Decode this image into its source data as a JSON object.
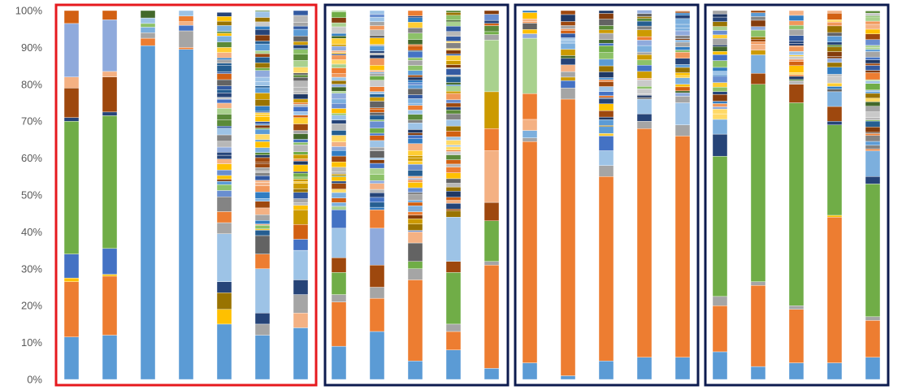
{
  "chart_data": {
    "type": "bar",
    "stacked": true,
    "percent_stacked": true,
    "ylim": [
      0,
      100
    ],
    "y_ticks": [
      "0%",
      "10%",
      "20%",
      "30%",
      "40%",
      "50%",
      "60%",
      "70%",
      "80%",
      "90%",
      "100%"
    ],
    "title": "",
    "xlabel": "",
    "ylabel": "",
    "legend": "none",
    "grid": false,
    "bar_width_ratio": 0.38,
    "groups": [
      {
        "name": "",
        "frame_color": "#e6191e",
        "bars": [
          0,
          1,
          2,
          3,
          4,
          5,
          6
        ]
      },
      {
        "name": "",
        "frame_color": "#0d1b4f",
        "bars": [
          7,
          8,
          9,
          10,
          11
        ]
      },
      {
        "name": "",
        "frame_color": "#0d1b4f",
        "bars": [
          12,
          13,
          14,
          15,
          16
        ]
      },
      {
        "name": "",
        "frame_color": "#0d1b4f",
        "bars": [
          17,
          18,
          19,
          20,
          21
        ]
      }
    ],
    "palette": [
      "#5b9bd5",
      "#ed7d31",
      "#a5a5a5",
      "#ffc000",
      "#4472c4",
      "#70ad47",
      "#264478",
      "#9e480e",
      "#636363",
      "#997300",
      "#255e91",
      "#43682b",
      "#7cafdd",
      "#f1975a",
      "#b7b7b7",
      "#ffcd33",
      "#698ed0",
      "#8cc168",
      "#335aa1",
      "#d26012",
      "#848484",
      "#cc9a00",
      "#327dc2",
      "#5a8a39",
      "#9dc3e6",
      "#f4b183",
      "#c9c9c9",
      "#ffd966",
      "#8faadc",
      "#a9d18e",
      "#1f3864",
      "#843c0c"
    ],
    "series_note": "",
    "bars": [
      {
        "segments": [
          {
            "v": 11.5,
            "c": "#5b9bd5"
          },
          {
            "v": 15,
            "c": "#ed7d31"
          },
          {
            "v": 1,
            "c": "#ffc000"
          },
          {
            "v": 6.5,
            "c": "#4472c4"
          },
          {
            "v": 36,
            "c": "#70ad47"
          },
          {
            "v": 1,
            "c": "#264478"
          },
          {
            "v": 8,
            "c": "#9e480e"
          },
          {
            "v": 3,
            "c": "#f4b183"
          },
          {
            "v": 14.5,
            "c": "#8faadc"
          },
          {
            "v": 3.5,
            "c": "#d26012"
          }
        ]
      },
      {
        "segments": [
          {
            "v": 12,
            "c": "#5b9bd5"
          },
          {
            "v": 16,
            "c": "#ed7d31"
          },
          {
            "v": 0.5,
            "c": "#ffc000"
          },
          {
            "v": 7,
            "c": "#4472c4"
          },
          {
            "v": 36,
            "c": "#70ad47"
          },
          {
            "v": 1,
            "c": "#264478"
          },
          {
            "v": 9.5,
            "c": "#9e480e"
          },
          {
            "v": 1.5,
            "c": "#f4b183"
          },
          {
            "v": 14,
            "c": "#8faadc"
          },
          {
            "v": 2.5,
            "c": "#d26012"
          }
        ]
      },
      {
        "segments": [
          {
            "v": 90.5,
            "c": "#5b9bd5"
          },
          {
            "v": 2,
            "c": "#ed7d31"
          },
          {
            "v": 1.5,
            "c": "#a5a5a5"
          },
          {
            "v": 1.5,
            "c": "#7cafdd"
          },
          {
            "v": 1,
            "c": "#8cc168"
          },
          {
            "v": 1.5,
            "c": "#9dc3e6"
          },
          {
            "v": 2,
            "c": "#43682b"
          }
        ]
      },
      {
        "segments": [
          {
            "v": 89.5,
            "c": "#5b9bd5"
          },
          {
            "v": 0.5,
            "c": "#ed7d31"
          },
          {
            "v": 4.5,
            "c": "#a5a5a5"
          },
          {
            "v": 1.5,
            "c": "#4472c4"
          },
          {
            "v": 1,
            "c": "#f4b183"
          },
          {
            "v": 1.5,
            "c": "#ed7d31"
          },
          {
            "v": 1.5,
            "c": "#9dc3e6"
          }
        ]
      },
      {
        "segments": [
          {
            "v": 15,
            "c": "#5b9bd5"
          },
          {
            "v": 4,
            "c": "#ffc000"
          },
          {
            "v": 4.5,
            "c": "#997300"
          },
          {
            "v": 3,
            "c": "#264478"
          },
          {
            "v": 13,
            "c": "#9dc3e6"
          },
          {
            "v": 3,
            "c": "#a5a5a5"
          },
          {
            "v": 3,
            "c": "#ed7d31"
          },
          {
            "v": 4,
            "c": "#848484"
          }
        ],
        "random_from": 50,
        "seed": 5
      },
      {
        "segments": [
          {
            "v": 12,
            "c": "#5b9bd5"
          },
          {
            "v": 3,
            "c": "#a5a5a5"
          },
          {
            "v": 3,
            "c": "#264478"
          },
          {
            "v": 12,
            "c": "#9dc3e6"
          },
          {
            "v": 4,
            "c": "#ed7d31"
          },
          {
            "v": 5,
            "c": "#636363"
          }
        ],
        "random_from": 39,
        "seed": 6
      },
      {
        "segments": [
          {
            "v": 14,
            "c": "#5b9bd5"
          },
          {
            "v": 4,
            "c": "#f4b183"
          },
          {
            "v": 5,
            "c": "#a5a5a5"
          },
          {
            "v": 4,
            "c": "#264478"
          },
          {
            "v": 8,
            "c": "#9dc3e6"
          },
          {
            "v": 3,
            "c": "#4472c4"
          },
          {
            "v": 4,
            "c": "#d26012"
          },
          {
            "v": 4,
            "c": "#cc9a00"
          }
        ],
        "random_from": 46,
        "seed": 7
      },
      {
        "segments": [
          {
            "v": 9,
            "c": "#5b9bd5"
          },
          {
            "v": 12,
            "c": "#ed7d31"
          },
          {
            "v": 2,
            "c": "#a5a5a5"
          },
          {
            "v": 6,
            "c": "#70ad47"
          },
          {
            "v": 4,
            "c": "#9e480e"
          },
          {
            "v": 8,
            "c": "#9dc3e6"
          },
          {
            "v": 5,
            "c": "#4472c4"
          }
        ],
        "random_from": 46,
        "seed": 8
      },
      {
        "segments": [
          {
            "v": 13,
            "c": "#5b9bd5"
          },
          {
            "v": 9,
            "c": "#ed7d31"
          },
          {
            "v": 3,
            "c": "#a5a5a5"
          },
          {
            "v": 6,
            "c": "#9e480e"
          },
          {
            "v": 10,
            "c": "#8faadc"
          },
          {
            "v": 5,
            "c": "#ed7d31"
          }
        ],
        "random_from": 46,
        "seed": 9
      },
      {
        "segments": [
          {
            "v": 5,
            "c": "#5b9bd5"
          },
          {
            "v": 22,
            "c": "#ed7d31"
          },
          {
            "v": 3,
            "c": "#a5a5a5"
          },
          {
            "v": 2,
            "c": "#70ad47"
          },
          {
            "v": 5,
            "c": "#636363"
          },
          {
            "v": 3,
            "c": "#f4b183"
          }
        ],
        "random_from": 40,
        "seed": 10
      },
      {
        "segments": [
          {
            "v": 8,
            "c": "#5b9bd5"
          },
          {
            "v": 5,
            "c": "#ed7d31"
          },
          {
            "v": 2,
            "c": "#a5a5a5"
          },
          {
            "v": 14,
            "c": "#70ad47"
          },
          {
            "v": 3,
            "c": "#9e480e"
          },
          {
            "v": 12,
            "c": "#9dc3e6"
          }
        ],
        "random_from": 44,
        "seed": 11
      },
      {
        "segments": [
          {
            "v": 3,
            "c": "#5b9bd5"
          },
          {
            "v": 28,
            "c": "#ed7d31"
          },
          {
            "v": 1,
            "c": "#a5a5a5"
          },
          {
            "v": 11,
            "c": "#70ad47"
          },
          {
            "v": 5,
            "c": "#9e480e"
          },
          {
            "v": 14,
            "c": "#f4b183"
          },
          {
            "v": 6,
            "c": "#ed7d31"
          },
          {
            "v": 10,
            "c": "#cc9a00"
          },
          {
            "v": 14,
            "c": "#a9d18e"
          }
        ],
        "random_from": 92,
        "seed": 12
      },
      {
        "segments": [
          {
            "v": 4.5,
            "c": "#5b9bd5"
          },
          {
            "v": 60,
            "c": "#ed7d31"
          },
          {
            "v": 1,
            "c": "#a5a5a5"
          },
          {
            "v": 2,
            "c": "#7cafdd"
          },
          {
            "v": 3,
            "c": "#f4b183"
          },
          {
            "v": 7,
            "c": "#ed7d31"
          },
          {
            "v": 15,
            "c": "#a9d18e"
          }
        ],
        "random_from": 92.5,
        "seed": 13
      },
      {
        "segments": [
          {
            "v": 1,
            "c": "#5b9bd5"
          },
          {
            "v": 75,
            "c": "#ed7d31"
          },
          {
            "v": 3,
            "c": "#a5a5a5"
          },
          {
            "v": 2,
            "c": "#4472c4"
          }
        ],
        "random_from": 81,
        "seed": 14
      },
      {
        "segments": [
          {
            "v": 5,
            "c": "#5b9bd5"
          },
          {
            "v": 50,
            "c": "#ed7d31"
          },
          {
            "v": 3,
            "c": "#a5a5a5"
          },
          {
            "v": 4,
            "c": "#9dc3e6"
          },
          {
            "v": 4,
            "c": "#4472c4"
          }
        ],
        "random_from": 66,
        "seed": 15
      },
      {
        "segments": [
          {
            "v": 6,
            "c": "#5b9bd5"
          },
          {
            "v": 62,
            "c": "#ed7d31"
          },
          {
            "v": 2,
            "c": "#a5a5a5"
          },
          {
            "v": 2,
            "c": "#264478"
          },
          {
            "v": 4,
            "c": "#9dc3e6"
          }
        ],
        "random_from": 76,
        "seed": 16
      },
      {
        "segments": [
          {
            "v": 6,
            "c": "#5b9bd5"
          },
          {
            "v": 60,
            "c": "#ed7d31"
          },
          {
            "v": 3,
            "c": "#a5a5a5"
          },
          {
            "v": 6,
            "c": "#9dc3e6"
          }
        ],
        "random_from": 75,
        "seed": 17
      },
      {
        "segments": [
          {
            "v": 7.5,
            "c": "#5b9bd5"
          },
          {
            "v": 12.5,
            "c": "#ed7d31"
          },
          {
            "v": 2.5,
            "c": "#a5a5a5"
          },
          {
            "v": 38,
            "c": "#70ad47"
          },
          {
            "v": 6,
            "c": "#264478"
          },
          {
            "v": 4,
            "c": "#7cafdd"
          }
        ],
        "random_from": 70.5,
        "seed": 18
      },
      {
        "segments": [
          {
            "v": 3.5,
            "c": "#5b9bd5"
          },
          {
            "v": 22,
            "c": "#ed7d31"
          },
          {
            "v": 1,
            "c": "#a5a5a5"
          },
          {
            "v": 53.5,
            "c": "#70ad47"
          },
          {
            "v": 3,
            "c": "#9e480e"
          },
          {
            "v": 5,
            "c": "#7cafdd"
          }
        ],
        "random_from": 88,
        "seed": 19
      },
      {
        "segments": [
          {
            "v": 4.5,
            "c": "#5b9bd5"
          },
          {
            "v": 14.5,
            "c": "#ed7d31"
          },
          {
            "v": 1,
            "c": "#a5a5a5"
          },
          {
            "v": 55,
            "c": "#70ad47"
          },
          {
            "v": 5,
            "c": "#9e480e"
          }
        ],
        "random_from": 80,
        "seed": 20
      },
      {
        "segments": [
          {
            "v": 4.5,
            "c": "#5b9bd5"
          },
          {
            "v": 39.5,
            "c": "#ed7d31"
          },
          {
            "v": 0.5,
            "c": "#ffc000"
          },
          {
            "v": 24.5,
            "c": "#70ad47"
          },
          {
            "v": 1,
            "c": "#264478"
          },
          {
            "v": 4,
            "c": "#9e480e"
          },
          {
            "v": 4,
            "c": "#7cafdd"
          }
        ],
        "random_from": 78,
        "seed": 21
      },
      {
        "segments": [
          {
            "v": 6,
            "c": "#5b9bd5"
          },
          {
            "v": 10,
            "c": "#ed7d31"
          },
          {
            "v": 1,
            "c": "#a5a5a5"
          },
          {
            "v": 36,
            "c": "#70ad47"
          },
          {
            "v": 2,
            "c": "#264478"
          },
          {
            "v": 7,
            "c": "#7cafdd"
          }
        ],
        "random_from": 62,
        "seed": 22
      }
    ]
  }
}
